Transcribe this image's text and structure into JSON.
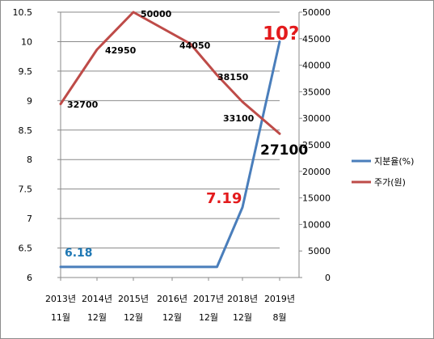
{
  "chart_data": {
    "type": "line",
    "categories": [
      {
        "line1": "2013년",
        "line2": "11월"
      },
      {
        "line1": "2014년",
        "line2": "12월"
      },
      {
        "line1": "2015년",
        "line2": "12월"
      },
      {
        "line1": "2016년",
        "line2": "12월"
      },
      {
        "line1": "2017년",
        "line2": "12월"
      },
      {
        "line1": "2018년",
        "line2": "12월"
      },
      {
        "line1": "2019년",
        "line2": "8월"
      }
    ],
    "x_positions": [
      0,
      1,
      2,
      2.6,
      3.5,
      4.25,
      4.95,
      5.5,
      6.25
    ],
    "series": [
      {
        "name": "지분율(%)",
        "axis": "left",
        "color": "#4a7ebb",
        "points": [
          {
            "x": 0,
            "y": 6.18
          },
          {
            "x": 3.5,
            "y": 6.18
          },
          {
            "x": 4.25,
            "y": 6.18
          },
          {
            "x": 5,
            "y": 7.19
          },
          {
            "x": 6,
            "y": 10
          }
        ]
      },
      {
        "name": "주가(원)",
        "axis": "right",
        "color": "#be4b48",
        "points": [
          {
            "x": 0,
            "y": 32700
          },
          {
            "x": 1,
            "y": 42950
          },
          {
            "x": 2,
            "y": 50000
          },
          {
            "x": 3.5,
            "y": 44050
          },
          {
            "x": 4.25,
            "y": 38150
          },
          {
            "x": 5,
            "y": 33100
          },
          {
            "x": 6,
            "y": 27100
          }
        ]
      }
    ],
    "left_axis": {
      "min": 6,
      "max": 10.5,
      "ticks": [
        "6",
        "6.5",
        "7",
        "7.5",
        "8",
        "8.5",
        "9",
        "9.5",
        "10",
        "10.5"
      ]
    },
    "right_axis": {
      "min": 0,
      "max": 50000,
      "ticks": [
        "0",
        "5000",
        "10000",
        "15000",
        "20000",
        "25000",
        "30000",
        "35000",
        "40000",
        "45000",
        "50000"
      ]
    },
    "grid": true,
    "legend_placement": "right",
    "legend": [
      "지분율(%)",
      "주가(원)"
    ],
    "annotations": {
      "share_2013": "6.18",
      "share_2018": "7.19",
      "share_2019": "10?",
      "price_2013": "32700",
      "price_2014": "42950",
      "price_2015": "50000",
      "price_2016": "44050",
      "price_2017": "38150",
      "price_2018": "33100",
      "price_2019": "27100"
    }
  }
}
